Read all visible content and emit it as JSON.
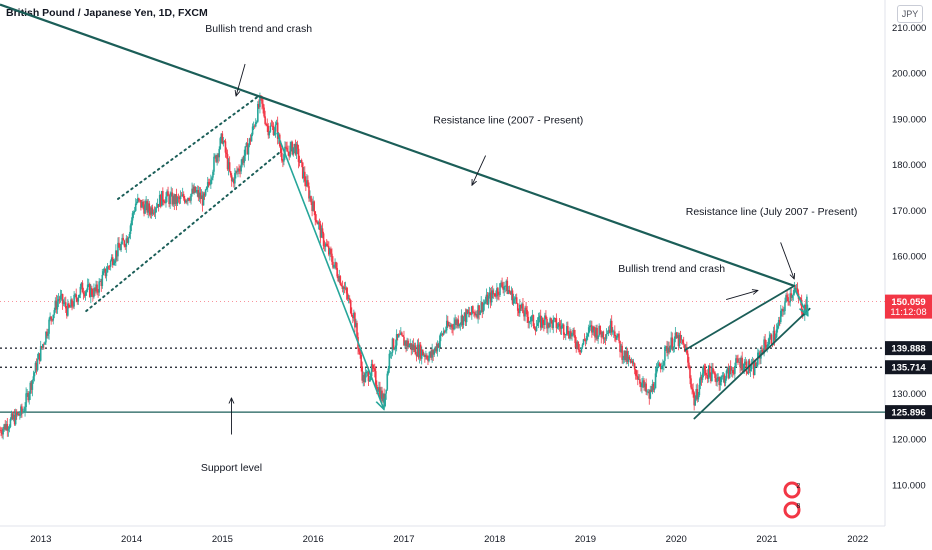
{
  "header": {
    "title": "British Pound / Japanese Yen, 1D, FXCM",
    "currency": "JPY"
  },
  "colors": {
    "trend": "#1b5e58",
    "teal": "#26a69a",
    "arrow": "#26a69a",
    "dark": "#131722",
    "price": "#f23645"
  },
  "chart_data": {
    "type": "candlestick",
    "title": "British Pound / Japanese Yen, 1D, FXCM",
    "xlim": [
      2012.55,
      2022.3
    ],
    "ylim": [
      101,
      216
    ],
    "x_ticks": [
      "2013",
      "2014",
      "2015",
      "2016",
      "2017",
      "2018",
      "2019",
      "2020",
      "2021",
      "2022"
    ],
    "y_ticks": [
      "110.000",
      "120.000",
      "130.000",
      "140.000",
      "150.000",
      "160.000",
      "170.000",
      "180.000",
      "190.000",
      "200.000",
      "210.000"
    ],
    "price_path": [
      [
        2012.55,
        122
      ],
      [
        2012.8,
        126
      ],
      [
        2012.95,
        136
      ],
      [
        2013.1,
        146
      ],
      [
        2013.2,
        151
      ],
      [
        2013.3,
        148
      ],
      [
        2013.45,
        153
      ],
      [
        2013.6,
        152
      ],
      [
        2013.8,
        160
      ],
      [
        2013.95,
        164
      ],
      [
        2014.05,
        172
      ],
      [
        2014.2,
        170
      ],
      [
        2014.35,
        173
      ],
      [
        2014.5,
        172
      ],
      [
        2014.7,
        174
      ],
      [
        2014.8,
        172
      ],
      [
        2014.9,
        180
      ],
      [
        2015.0,
        186
      ],
      [
        2015.1,
        176
      ],
      [
        2015.2,
        180
      ],
      [
        2015.3,
        185
      ],
      [
        2015.42,
        194
      ],
      [
        2015.5,
        188
      ],
      [
        2015.6,
        188
      ],
      [
        2015.65,
        182
      ],
      [
        2015.8,
        184
      ],
      [
        2015.95,
        174
      ],
      [
        2016.1,
        164
      ],
      [
        2016.3,
        155
      ],
      [
        2016.45,
        147
      ],
      [
        2016.55,
        133
      ],
      [
        2016.65,
        135
      ],
      [
        2016.78,
        128
      ],
      [
        2016.85,
        140
      ],
      [
        2016.95,
        142
      ],
      [
        2017.1,
        140
      ],
      [
        2017.3,
        138
      ],
      [
        2017.45,
        144
      ],
      [
        2017.6,
        146
      ],
      [
        2017.8,
        148
      ],
      [
        2017.95,
        151
      ],
      [
        2018.1,
        154
      ],
      [
        2018.3,
        148
      ],
      [
        2018.45,
        145
      ],
      [
        2018.55,
        146
      ],
      [
        2018.8,
        144
      ],
      [
        2018.95,
        140
      ],
      [
        2019.05,
        144
      ],
      [
        2019.2,
        143
      ],
      [
        2019.3,
        145
      ],
      [
        2019.4,
        139
      ],
      [
        2019.55,
        135
      ],
      [
        2019.7,
        129
      ],
      [
        2019.8,
        135
      ],
      [
        2019.9,
        140
      ],
      [
        2020.0,
        142
      ],
      [
        2020.1,
        140
      ],
      [
        2020.2,
        128
      ],
      [
        2020.3,
        135
      ],
      [
        2020.5,
        133
      ],
      [
        2020.7,
        137
      ],
      [
        2020.85,
        135
      ],
      [
        2020.95,
        140
      ],
      [
        2021.1,
        143
      ],
      [
        2021.2,
        150
      ],
      [
        2021.3,
        153
      ],
      [
        2021.4,
        148
      ],
      [
        2021.45,
        150.06
      ]
    ],
    "levels": [
      {
        "name": "Support level",
        "value": 125.896,
        "label": "125.896",
        "style": "solid"
      },
      {
        "value": 135.714,
        "label": "135.714",
        "style": "dotted"
      },
      {
        "value": 139.888,
        "label": "139.888",
        "style": "dotted"
      }
    ],
    "current_price": {
      "value": 150.059,
      "label": "150.059",
      "countdown": "11:12:08"
    },
    "resistance_line": {
      "name": "Resistance line (2007 - Present)",
      "from": [
        2012.55,
        215
      ],
      "to": [
        2021.3,
        153.5
      ]
    },
    "channels": [
      {
        "upper": [
          [
            2013.85,
            172.5
          ],
          [
            2015.4,
            195
          ]
        ],
        "lower": [
          [
            2013.5,
            148
          ],
          [
            2015.65,
            183
          ]
        ],
        "style": "dotted"
      },
      {
        "upper": [
          [
            2020.1,
            139.5
          ],
          [
            2021.3,
            153.5
          ]
        ],
        "lower": [
          [
            2020.2,
            124.5
          ],
          [
            2021.47,
            148.5
          ]
        ],
        "style": "solid"
      }
    ],
    "crash_arrows": [
      {
        "from": [
          2015.6,
          187
        ],
        "to": [
          2016.78,
          126.5
        ]
      },
      {
        "from": [
          2021.3,
          153
        ],
        "to": [
          2021.45,
          147
        ]
      }
    ],
    "annotations": [
      {
        "text": "Bullish trend and crash",
        "at": [
          2015.4,
          209
        ],
        "arrow_from": [
          2015.25,
          202
        ],
        "arrow_to": [
          2015.15,
          195
        ]
      },
      {
        "text": "Resistance line (2007 - Present)",
        "at": [
          2018.15,
          189
        ],
        "arrow_from": [
          2017.9,
          182
        ],
        "arrow_to": [
          2017.75,
          175.5
        ]
      },
      {
        "text": "Resistance line (July 2007 - Present)",
        "at": [
          2021.05,
          169
        ],
        "arrow_from": [
          2021.15,
          163
        ],
        "arrow_to": [
          2021.3,
          155
        ]
      },
      {
        "text": "Bullish trend and crash",
        "at": [
          2019.95,
          156.5
        ],
        "arrow_from": [
          2020.55,
          150.5
        ],
        "arrow_to": [
          2020.9,
          152.5
        ]
      },
      {
        "text": "Support level",
        "at": [
          2015.1,
          113
        ],
        "arrow_from": [
          2015.1,
          121
        ],
        "arrow_to": [
          2015.1,
          129
        ]
      }
    ],
    "markers": [
      "2",
      "8"
    ]
  }
}
